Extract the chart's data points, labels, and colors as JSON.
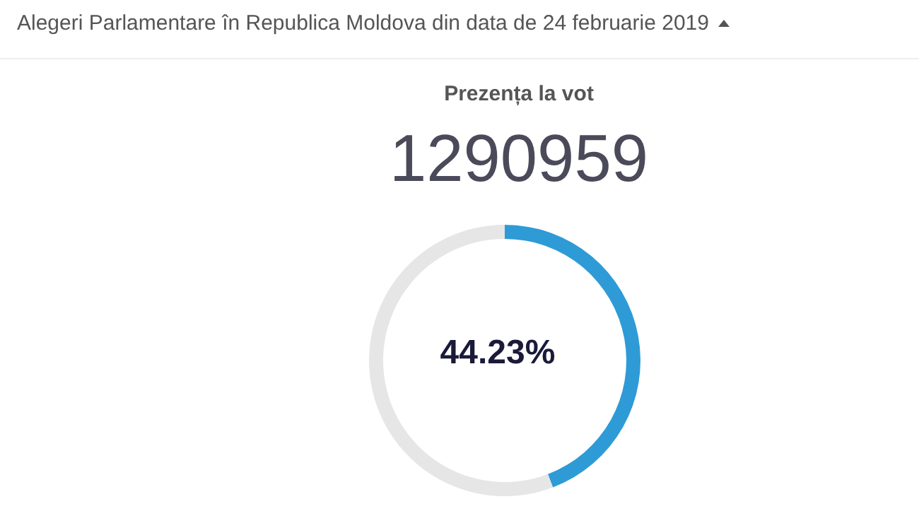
{
  "chart_data": {
    "type": "donut",
    "title": "Alegeri Parlamentare în Republica Moldova din data de 24 februarie 2019",
    "subtitle": "Prezența la vot",
    "annotations": [
      "1290959"
    ],
    "categories": [
      null,
      null
    ],
    "values": [
      44.23,
      55.77
    ],
    "colors": [
      "#2e9bd6",
      "#e6e6e6"
    ],
    "value_labels": [
      "44.23%",
      null
    ]
  }
}
